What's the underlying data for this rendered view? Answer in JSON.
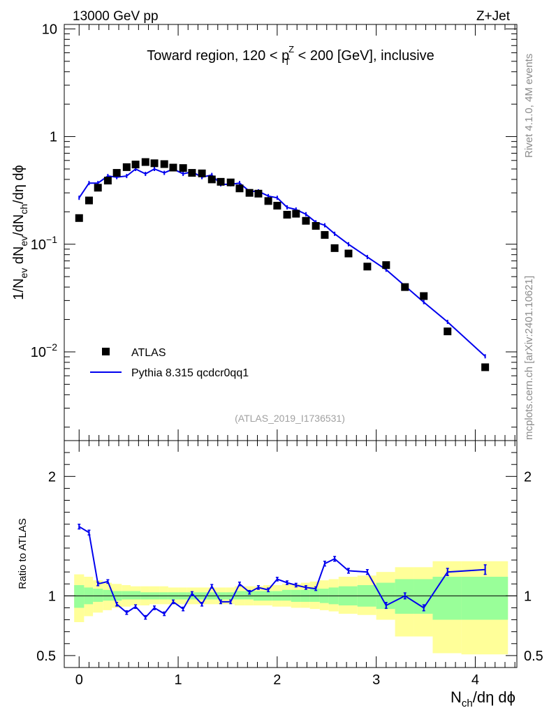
{
  "header": {
    "left": "13000 GeV pp",
    "right": "Z+Jet"
  },
  "side_labels": {
    "rivet": "Rivet 4.1.0,  4M events",
    "site": "mcplots.cern.ch [arXiv:2401.10621]"
  },
  "chart_data": [
    {
      "type": "line",
      "panel": "main",
      "title": "Toward region, 120 < p_T^Z < 200 [GeV], inclusive",
      "title_parts": {
        "a": "Toward region, 120 < p",
        "sup": "Z",
        "sub": "T",
        "b": " < 200 [GeV], inclusive"
      },
      "ylabel": "1/N_ev dN_ev/dN_ch/dη dϕ",
      "ylabel_parts": {
        "p1": "1/N",
        "s1": "ev",
        "p2": " dN",
        "s2": "ev",
        "p3": "/dN",
        "s3": "ch",
        "p4": "/dη dϕ"
      },
      "yscale": "log",
      "xlim": [
        -0.15,
        4.42
      ],
      "ylim": [
        0.0015,
        11
      ],
      "y_ticks": [
        {
          "value": 10,
          "label": "10"
        },
        {
          "value": 1,
          "label": "1"
        },
        {
          "value": 0.1,
          "base": "10",
          "exp": "−1"
        },
        {
          "value": 0.01,
          "base": "10",
          "exp": "−2"
        }
      ],
      "watermark": "(ATLAS_2019_I1736531)",
      "legend": {
        "position": "lower-left",
        "data_label": "ATLAS",
        "mc_label": "Pythia 8.315 qcdcr0qq1"
      },
      "series": [
        {
          "name": "ATLAS",
          "style": "markers",
          "x": [
            0.0,
            0.1,
            0.19,
            0.29,
            0.38,
            0.48,
            0.57,
            0.67,
            0.76,
            0.86,
            0.95,
            1.05,
            1.14,
            1.24,
            1.34,
            1.43,
            1.53,
            1.62,
            1.72,
            1.81,
            1.91,
            2.0,
            2.1,
            2.19,
            2.29,
            2.39,
            2.48,
            2.58,
            2.72,
            2.91,
            3.1,
            3.29,
            3.48,
            3.72,
            4.1
          ],
          "values": [
            0.175,
            0.255,
            0.335,
            0.39,
            0.46,
            0.52,
            0.55,
            0.58,
            0.565,
            0.555,
            0.515,
            0.51,
            0.46,
            0.455,
            0.4,
            0.38,
            0.375,
            0.33,
            0.3,
            0.295,
            0.252,
            0.228,
            0.188,
            0.192,
            0.165,
            0.148,
            0.122,
            0.092,
            0.082,
            0.062,
            0.064,
            0.04,
            0.033,
            0.0155,
            0.0072
          ]
        },
        {
          "name": "Pythia 8.315 qcdcr0qq1",
          "style": "line",
          "color": "#0000ee",
          "x": [
            0.0,
            0.1,
            0.19,
            0.29,
            0.38,
            0.48,
            0.57,
            0.67,
            0.76,
            0.86,
            0.95,
            1.05,
            1.14,
            1.24,
            1.34,
            1.43,
            1.53,
            1.62,
            1.72,
            1.81,
            1.91,
            2.0,
            2.1,
            2.19,
            2.29,
            2.39,
            2.48,
            2.58,
            2.72,
            2.91,
            3.1,
            3.29,
            3.48,
            3.72,
            4.1
          ],
          "values": [
            0.27,
            0.37,
            0.37,
            0.43,
            0.42,
            0.43,
            0.5,
            0.45,
            0.5,
            0.46,
            0.5,
            0.45,
            0.47,
            0.42,
            0.44,
            0.36,
            0.36,
            0.37,
            0.31,
            0.31,
            0.28,
            0.27,
            0.22,
            0.21,
            0.19,
            0.16,
            0.15,
            0.125,
            0.1,
            0.076,
            0.058,
            0.041,
            0.029,
            0.019,
            0.0091
          ]
        }
      ]
    },
    {
      "type": "line",
      "panel": "ratio",
      "ylabel": "Ratio to ATLAS",
      "xlabel": "N_ch/dη dϕ",
      "xlabel_parts": {
        "p1": "N",
        "s1": "ch",
        "p2": "/dη dϕ"
      },
      "xlim": [
        -0.15,
        4.42
      ],
      "ylim": [
        0.4,
        2.3
      ],
      "x_ticks": [
        0,
        1,
        2,
        3,
        4
      ],
      "y_ticks": [
        0.5,
        1,
        2
      ],
      "y_tick_labels": [
        "0.5",
        "1",
        "2"
      ],
      "reference": 1,
      "bands": {
        "yellow_color": "#ffff99",
        "green_color": "#99ff99",
        "bins": [
          {
            "x0": -0.05,
            "x1": 0.05,
            "yellow": [
              0.78,
              1.18
            ],
            "green": [
              0.9,
              1.09
            ]
          },
          {
            "x0": 0.05,
            "x1": 0.14,
            "yellow": [
              0.83,
              1.16
            ],
            "green": [
              0.93,
              1.07
            ]
          },
          {
            "x0": 0.14,
            "x1": 0.24,
            "yellow": [
              0.86,
              1.13
            ],
            "green": [
              0.95,
              1.06
            ]
          },
          {
            "x0": 0.24,
            "x1": 0.33,
            "yellow": [
              0.88,
              1.11
            ],
            "green": [
              0.96,
              1.05
            ]
          },
          {
            "x0": 0.33,
            "x1": 0.43,
            "yellow": [
              0.9,
              1.1
            ],
            "green": [
              0.96,
              1.04
            ]
          },
          {
            "x0": 0.43,
            "x1": 0.52,
            "yellow": [
              0.91,
              1.09
            ],
            "green": [
              0.97,
              1.04
            ]
          },
          {
            "x0": 0.52,
            "x1": 0.62,
            "yellow": [
              0.92,
              1.08
            ],
            "green": [
              0.97,
              1.04
            ]
          },
          {
            "x0": 0.62,
            "x1": 0.71,
            "yellow": [
              0.92,
              1.08
            ],
            "green": [
              0.97,
              1.03
            ]
          },
          {
            "x0": 0.71,
            "x1": 0.81,
            "yellow": [
              0.93,
              1.08
            ],
            "green": [
              0.97,
              1.03
            ]
          },
          {
            "x0": 0.81,
            "x1": 0.9,
            "yellow": [
              0.93,
              1.08
            ],
            "green": [
              0.97,
              1.03
            ]
          },
          {
            "x0": 0.9,
            "x1": 1.0,
            "yellow": [
              0.93,
              1.07
            ],
            "green": [
              0.97,
              1.03
            ]
          },
          {
            "x0": 1.0,
            "x1": 1.09,
            "yellow": [
              0.93,
              1.07
            ],
            "green": [
              0.97,
              1.03
            ]
          },
          {
            "x0": 1.09,
            "x1": 1.19,
            "yellow": [
              0.93,
              1.07
            ],
            "green": [
              0.97,
              1.03
            ]
          },
          {
            "x0": 1.19,
            "x1": 1.29,
            "yellow": [
              0.93,
              1.07
            ],
            "green": [
              0.97,
              1.03
            ]
          },
          {
            "x0": 1.29,
            "x1": 1.38,
            "yellow": [
              0.93,
              1.07
            ],
            "green": [
              0.97,
              1.03
            ]
          },
          {
            "x0": 1.38,
            "x1": 1.48,
            "yellow": [
              0.93,
              1.07
            ],
            "green": [
              0.97,
              1.03
            ]
          },
          {
            "x0": 1.48,
            "x1": 1.57,
            "yellow": [
              0.93,
              1.07
            ],
            "green": [
              0.97,
              1.03
            ]
          },
          {
            "x0": 1.57,
            "x1": 1.67,
            "yellow": [
              0.92,
              1.08
            ],
            "green": [
              0.97,
              1.04
            ]
          },
          {
            "x0": 1.67,
            "x1": 1.76,
            "yellow": [
              0.92,
              1.08
            ],
            "green": [
              0.97,
              1.04
            ]
          },
          {
            "x0": 1.76,
            "x1": 1.86,
            "yellow": [
              0.92,
              1.08
            ],
            "green": [
              0.96,
              1.04
            ]
          },
          {
            "x0": 1.86,
            "x1": 1.95,
            "yellow": [
              0.92,
              1.09
            ],
            "green": [
              0.96,
              1.04
            ]
          },
          {
            "x0": 1.95,
            "x1": 2.05,
            "yellow": [
              0.91,
              1.09
            ],
            "green": [
              0.96,
              1.04
            ]
          },
          {
            "x0": 2.05,
            "x1": 2.14,
            "yellow": [
              0.91,
              1.1
            ],
            "green": [
              0.96,
              1.05
            ]
          },
          {
            "x0": 2.14,
            "x1": 2.24,
            "yellow": [
              0.9,
              1.1
            ],
            "green": [
              0.95,
              1.05
            ]
          },
          {
            "x0": 2.24,
            "x1": 2.33,
            "yellow": [
              0.9,
              1.11
            ],
            "green": [
              0.95,
              1.05
            ]
          },
          {
            "x0": 2.33,
            "x1": 2.43,
            "yellow": [
              0.89,
              1.12
            ],
            "green": [
              0.95,
              1.06
            ]
          },
          {
            "x0": 2.43,
            "x1": 2.52,
            "yellow": [
              0.88,
              1.13
            ],
            "green": [
              0.94,
              1.06
            ]
          },
          {
            "x0": 2.52,
            "x1": 2.62,
            "yellow": [
              0.87,
              1.14
            ],
            "green": [
              0.93,
              1.07
            ]
          },
          {
            "x0": 2.62,
            "x1": 2.81,
            "yellow": [
              0.85,
              1.16
            ],
            "green": [
              0.92,
              1.08
            ]
          },
          {
            "x0": 2.81,
            "x1": 3.0,
            "yellow": [
              0.84,
              1.17
            ],
            "green": [
              0.91,
              1.09
            ]
          },
          {
            "x0": 3.0,
            "x1": 3.19,
            "yellow": [
              0.8,
              1.2
            ],
            "green": [
              0.89,
              1.11
            ]
          },
          {
            "x0": 3.19,
            "x1": 3.38,
            "yellow": [
              0.66,
              1.24
            ],
            "green": [
              0.85,
              1.14
            ]
          },
          {
            "x0": 3.38,
            "x1": 3.57,
            "yellow": [
              0.66,
              1.24
            ],
            "green": [
              0.85,
              1.14
            ]
          },
          {
            "x0": 3.57,
            "x1": 3.86,
            "yellow": [
              0.52,
              1.29
            ],
            "green": [
              0.8,
              1.16
            ]
          },
          {
            "x0": 3.86,
            "x1": 4.33,
            "yellow": [
              0.51,
              1.29
            ],
            "green": [
              0.8,
              1.16
            ]
          }
        ]
      },
      "series": [
        {
          "name": "Pythia 8.315 qcdcr0qq1 / ATLAS",
          "color": "#0000ee",
          "x": [
            0.0,
            0.1,
            0.19,
            0.29,
            0.38,
            0.48,
            0.57,
            0.67,
            0.76,
            0.86,
            0.95,
            1.05,
            1.14,
            1.24,
            1.34,
            1.43,
            1.53,
            1.62,
            1.72,
            1.81,
            1.91,
            2.0,
            2.1,
            2.19,
            2.29,
            2.39,
            2.48,
            2.58,
            2.72,
            2.91,
            3.1,
            3.29,
            3.48,
            3.72,
            4.1
          ],
          "values": [
            1.58,
            1.53,
            1.1,
            1.12,
            0.93,
            0.86,
            0.91,
            0.82,
            0.9,
            0.85,
            0.95,
            0.89,
            1.02,
            0.93,
            1.08,
            0.95,
            0.95,
            1.1,
            1.03,
            1.07,
            1.05,
            1.14,
            1.11,
            1.09,
            1.07,
            1.06,
            1.27,
            1.31,
            1.21,
            1.2,
            0.92,
            1.0,
            0.9,
            1.2,
            1.22
          ],
          "errors": [
            0.02,
            0.02,
            0.015,
            0.015,
            0.015,
            0.015,
            0.015,
            0.015,
            0.015,
            0.015,
            0.015,
            0.015,
            0.015,
            0.015,
            0.015,
            0.015,
            0.015,
            0.015,
            0.015,
            0.015,
            0.015,
            0.015,
            0.015,
            0.015,
            0.015,
            0.015,
            0.02,
            0.02,
            0.02,
            0.02,
            0.025,
            0.025,
            0.025,
            0.03,
            0.04
          ]
        }
      ]
    }
  ]
}
